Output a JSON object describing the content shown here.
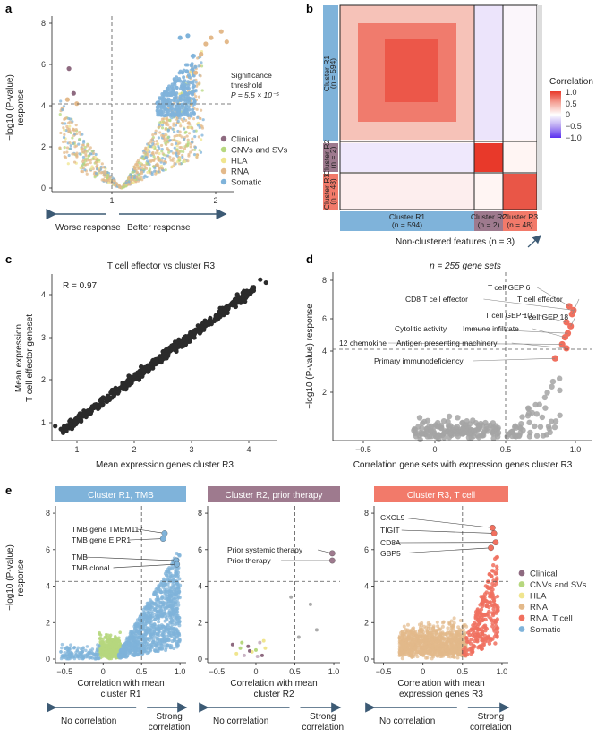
{
  "panels": {
    "a": {
      "letter": "a",
      "ylabel_line1": "−log10 (P-value)",
      "ylabel_line2": "response",
      "sig_label_1": "Significance",
      "sig_label_2": "threshold",
      "sig_label_3": "P = 5.5 × 10⁻⁵",
      "arrow_left": "Worse response",
      "arrow_right": "Better response",
      "legend": [
        {
          "label": "Clinical",
          "color": "#8e6a80"
        },
        {
          "label": "CNVs and SVs",
          "color": "#b6d77e"
        },
        {
          "label": "HLA",
          "color": "#f0e58e"
        },
        {
          "label": "RNA",
          "color": "#e3b98a"
        },
        {
          "label": "Somatic",
          "color": "#7fb3da"
        }
      ]
    },
    "b": {
      "letter": "b",
      "colorbar_title": "Correlation",
      "colorbar_ticks": [
        "1.0",
        "0.5",
        "0",
        "−0.5",
        "−1.0"
      ],
      "row_r1": "Cluster R1\n(n = 594)",
      "row_r2": "Cluster R2\n(n = 2)",
      "row_r3": "Cluster R3\n(n = 48)",
      "col_r1_1": "Cluster R1",
      "col_r1_2": "(n = 594)",
      "col_r2_1": "Cluster R2",
      "col_r2_2": "(n = 2)",
      "col_r3_1": "Cluster R3",
      "col_r3_2": "(n = 48)",
      "nonclustered": "Non-clustered features (n = 3)"
    },
    "c": {
      "letter": "c",
      "title": "T cell effector vs cluster R3",
      "r_label": "R = 0.97",
      "xlabel": "Mean expression genes cluster R3",
      "ylabel_1": "Mean expression",
      "ylabel_2": "T cell effector geneset"
    },
    "d": {
      "letter": "d",
      "title": "n = 255 gene sets",
      "xlabel": "Correlation gene sets with expression genes cluster R3",
      "ylabel": "−log10 (P-value) response",
      "labels": [
        "T cell GEP 6",
        "CD8 T cell effector",
        "T cell effector",
        "T cell GEP 10",
        "T cell GEP 18",
        "Cytolitic activity",
        "Immune infiltrate",
        "12 chemokine",
        "Antigen presenting machinery",
        "Primary immunodeficiency"
      ]
    },
    "e": {
      "letter": "e",
      "ylabel_1": "−log10 (P-value)",
      "ylabel_2": "response",
      "p1": {
        "header": "Cluster R1, TMB",
        "header_color": "#7fb3da",
        "xlabel_1": "Correlation with mean",
        "xlabel_2": "cluster R1",
        "labels": [
          "TMB gene TMEM117",
          "TMB gene EIPR1",
          "TMB",
          "TMB clonal"
        ]
      },
      "p2": {
        "header": "Cluster R2, prior therapy",
        "header_color": "#9e7a8e",
        "xlabel_1": "Correlation with mean",
        "xlabel_2": "cluster R2",
        "labels": [
          "Prior systemic therapy",
          "Prior therapy"
        ]
      },
      "p3": {
        "header": "Cluster R3, T cell",
        "header_color": "#f27a6a",
        "xlabel_1": "Correlation with mean",
        "xlabel_2": "expression genes R3",
        "labels": [
          "CXCL9",
          "TIGIT",
          "CD8A",
          "GBP5"
        ]
      },
      "arrow_left": "No correlation",
      "arrow_right_1": "Strong",
      "arrow_right_2": "correlation",
      "legend": [
        {
          "label": "Clinical",
          "color": "#8e6a80"
        },
        {
          "label": "CNVs and SVs",
          "color": "#b6d77e"
        },
        {
          "label": "HLA",
          "color": "#f0e58e"
        },
        {
          "label": "RNA",
          "color": "#e3b98a"
        },
        {
          "label": "RNA: T cell",
          "color": "#f0705f"
        },
        {
          "label": "Somatic",
          "color": "#7fb3da"
        }
      ]
    }
  },
  "chart_data": [
    {
      "panel": "a",
      "type": "scatter",
      "title": "",
      "xlabel": "",
      "ylabel": "−log10 (P-value) response",
      "xlim": [
        0.1,
        2.45
      ],
      "ylim": [
        0,
        8
      ],
      "xticks": [
        1,
        2
      ],
      "yticks": [
        0,
        2,
        4,
        6,
        8
      ],
      "threshold_y": 4.26,
      "highlight_points": [
        {
          "x": 0.32,
          "y": 5.8,
          "group": "Clinical"
        },
        {
          "x": 0.38,
          "y": 4.6,
          "group": "Clinical"
        },
        {
          "x": 0.3,
          "y": 4.3,
          "group": "RNA"
        },
        {
          "x": 0.42,
          "y": 4.1,
          "group": "RNA"
        },
        {
          "x": 2.28,
          "y": 7.6,
          "group": "RNA"
        },
        {
          "x": 2.15,
          "y": 7.3,
          "group": "RNA"
        },
        {
          "x": 2.08,
          "y": 7.0,
          "group": "RNA"
        },
        {
          "x": 2.35,
          "y": 7.1,
          "group": "RNA"
        },
        {
          "x": 1.75,
          "y": 7.3,
          "group": "Somatic"
        },
        {
          "x": 1.85,
          "y": 7.4,
          "group": "Somatic"
        },
        {
          "x": 2.02,
          "y": 6.5,
          "group": "RNA"
        },
        {
          "x": 1.95,
          "y": 5.6,
          "group": "RNA"
        }
      ]
    },
    {
      "panel": "c",
      "type": "scatter",
      "title": "T cell effector vs cluster R3",
      "xlabel": "Mean expression genes cluster R3",
      "ylabel": "Mean expression T cell effector geneset",
      "xlim": [
        0.5,
        4.5
      ],
      "ylim": [
        0.7,
        4.4
      ],
      "xticks": [
        1,
        2,
        3,
        4
      ],
      "yticks": [
        1,
        2,
        3,
        4
      ],
      "correlation_R": 0.97,
      "fit": {
        "slope": 1.0,
        "intercept": 0.05
      }
    },
    {
      "panel": "d",
      "type": "scatter",
      "title": "n = 255 gene sets",
      "xlabel": "Correlation gene sets with expression genes cluster R3",
      "ylabel": "−log10 (P-value) response",
      "xlim": [
        -0.65,
        1.08
      ],
      "ylim": [
        0,
        8.5
      ],
      "xticks": [
        -0.5,
        0,
        0.5,
        1.0
      ],
      "yticks": [
        2,
        4,
        6,
        8
      ],
      "threshold_y": 4.26,
      "vline_x": 0.5,
      "labeled_points": [
        {
          "label": "T cell GEP 6",
          "x": 0.95,
          "y": 6.7
        },
        {
          "label": "CD8 T cell effector",
          "x": 0.98,
          "y": 6.5
        },
        {
          "label": "T cell effector",
          "x": 0.97,
          "y": 6.3
        },
        {
          "label": "T cell GEP 10",
          "x": 0.93,
          "y": 5.9
        },
        {
          "label": "T cell GEP 18",
          "x": 0.96,
          "y": 5.7
        },
        {
          "label": "Cytolitic activity",
          "x": 0.94,
          "y": 5.35
        },
        {
          "label": "Immune infiltrate",
          "x": 0.92,
          "y": 5.15
        },
        {
          "label": "12 chemokine",
          "x": 0.9,
          "y": 4.8
        },
        {
          "label": "Antigen presenting machinery",
          "x": 0.93,
          "y": 4.6
        },
        {
          "label": "Primary immunodeficiency",
          "x": 0.85,
          "y": 4.1
        }
      ]
    },
    {
      "panel": "e1",
      "type": "scatter",
      "title": "Cluster R1, TMB",
      "xlabel": "Correlation with mean cluster R1",
      "ylabel": "−log10 (P-value) response",
      "xlim": [
        -0.62,
        1.08
      ],
      "ylim": [
        0,
        8.2
      ],
      "xticks": [
        -0.5,
        0,
        0.5,
        1.0
      ],
      "yticks": [
        0,
        2,
        4,
        6,
        8
      ],
      "threshold_y": 4.26,
      "vline_x": 0.5,
      "labeled_points": [
        {
          "label": "TMB gene TMEM117",
          "x": 0.8,
          "y": 6.9
        },
        {
          "label": "TMB gene EIPR1",
          "x": 0.78,
          "y": 6.6
        },
        {
          "label": "TMB",
          "x": 0.95,
          "y": 5.4
        },
        {
          "label": "TMB clonal",
          "x": 0.96,
          "y": 5.2
        }
      ]
    },
    {
      "panel": "e2",
      "type": "scatter",
      "title": "Cluster R2, prior therapy",
      "xlabel": "Correlation with mean cluster R2",
      "ylabel": "",
      "xlim": [
        -0.62,
        1.08
      ],
      "ylim": [
        0,
        8.2
      ],
      "xticks": [
        -0.5,
        0,
        0.5,
        1.0
      ],
      "yticks": [
        0,
        2,
        4,
        6,
        8
      ],
      "threshold_y": 4.26,
      "vline_x": 0.5,
      "labeled_points": [
        {
          "label": "Prior systemic therapy",
          "x": 0.98,
          "y": 5.8
        },
        {
          "label": "Prior therapy",
          "x": 0.98,
          "y": 5.4
        }
      ],
      "other_points": [
        {
          "x": 0.55,
          "y": 1.2
        },
        {
          "x": 0.7,
          "y": 3.0
        },
        {
          "x": 0.78,
          "y": 1.6
        },
        {
          "x": 0.45,
          "y": 3.4
        },
        {
          "x": -0.3,
          "y": 0.8
        },
        {
          "x": -0.25,
          "y": 0.3
        },
        {
          "x": -0.2,
          "y": 0.6
        },
        {
          "x": -0.15,
          "y": 0.2
        },
        {
          "x": -0.1,
          "y": 0.7
        },
        {
          "x": -0.05,
          "y": 0.4
        },
        {
          "x": 0.0,
          "y": 0.5
        },
        {
          "x": 0.05,
          "y": 0.9
        },
        {
          "x": 0.08,
          "y": 0.2
        },
        {
          "x": 0.12,
          "y": 0.6
        },
        {
          "x": -0.18,
          "y": 0.9
        },
        {
          "x": 0.02,
          "y": 0.15
        },
        {
          "x": -0.08,
          "y": 0.45
        },
        {
          "x": 0.1,
          "y": 1.0
        }
      ]
    },
    {
      "panel": "e3",
      "type": "scatter",
      "title": "Cluster R3, T cell",
      "xlabel": "Correlation with mean expression genes R3",
      "ylabel": "",
      "xlim": [
        -0.62,
        1.08
      ],
      "ylim": [
        0,
        8.2
      ],
      "xticks": [
        -0.5,
        0,
        0.5,
        1.0
      ],
      "yticks": [
        0,
        2,
        4,
        6,
        8
      ],
      "threshold_y": 4.26,
      "vline_x": 0.5,
      "labeled_points": [
        {
          "label": "CXCL9",
          "x": 0.88,
          "y": 7.2
        },
        {
          "label": "TIGIT",
          "x": 0.9,
          "y": 6.9
        },
        {
          "label": "CD8A",
          "x": 0.92,
          "y": 6.4
        },
        {
          "label": "GBP5",
          "x": 0.86,
          "y": 6.1
        }
      ]
    }
  ]
}
